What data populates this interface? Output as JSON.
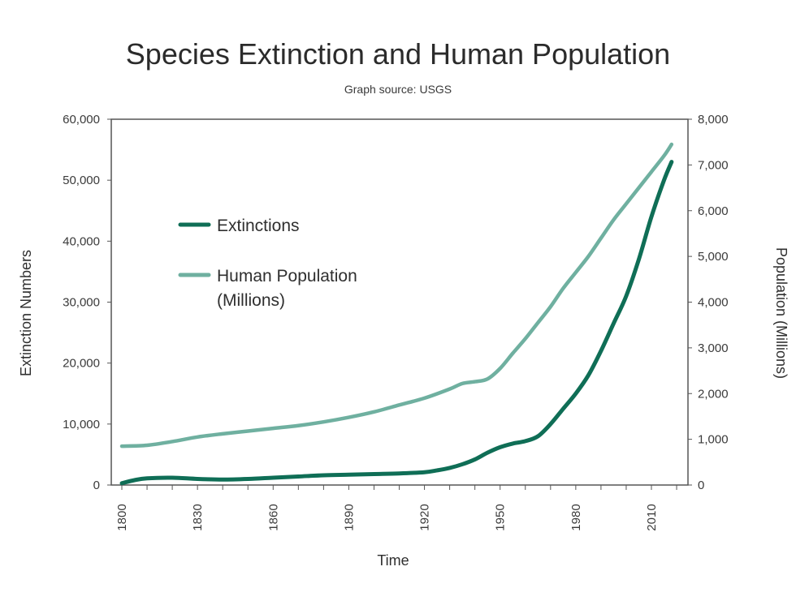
{
  "chart_data": {
    "type": "line",
    "title": "Species Extinction and Human Population",
    "subtitle": "Graph source: USGS",
    "xlabel": "Time",
    "ylabel_left": "Extinction Numbers",
    "ylabel_right": "Population (Millions)",
    "xlim": [
      1800,
      2020
    ],
    "ylim_left": [
      0,
      60000
    ],
    "ylim_right": [
      0,
      8000
    ],
    "x_ticks": [
      "1800",
      "1830",
      "1860",
      "1890",
      "1920",
      "1950",
      "1980",
      "2010"
    ],
    "y_left_ticks": [
      "0",
      "10,000",
      "20,000",
      "30,000",
      "40,000",
      "50,000",
      "60,000"
    ],
    "y_right_ticks": [
      "0",
      "1,000",
      "2,000",
      "3,000",
      "4,000",
      "5,000",
      "6,000",
      "7,000",
      "8,000"
    ],
    "grid": false,
    "legend_position": "upper-left",
    "series": [
      {
        "name": "Extinctions",
        "axis": "left",
        "color": "#0f6e56",
        "x": [
          1800,
          1805,
          1810,
          1820,
          1830,
          1840,
          1850,
          1860,
          1870,
          1880,
          1890,
          1900,
          1910,
          1920,
          1925,
          1930,
          1935,
          1940,
          1945,
          1950,
          1955,
          1960,
          1965,
          1970,
          1975,
          1980,
          1985,
          1990,
          1995,
          2000,
          2005,
          2010,
          2015,
          2018
        ],
        "y": [
          300,
          800,
          1100,
          1200,
          1000,
          900,
          1000,
          1200,
          1400,
          1600,
          1700,
          1800,
          1900,
          2100,
          2400,
          2800,
          3400,
          4200,
          5300,
          6200,
          6800,
          7200,
          8000,
          10000,
          12500,
          15000,
          18000,
          22000,
          26500,
          31000,
          37000,
          44000,
          50000,
          53000
        ]
      },
      {
        "name": "Human Population\n(Millions)",
        "name_lines": [
          "Human Population",
          "(Millions)"
        ],
        "axis": "right",
        "color": "#6fb0a0",
        "x": [
          1800,
          1810,
          1820,
          1830,
          1840,
          1850,
          1860,
          1870,
          1880,
          1890,
          1900,
          1910,
          1920,
          1930,
          1935,
          1940,
          1945,
          1950,
          1955,
          1960,
          1965,
          1970,
          1975,
          1980,
          1985,
          1990,
          1995,
          2000,
          2005,
          2010,
          2015,
          2018
        ],
        "y": [
          850,
          870,
          950,
          1050,
          1120,
          1180,
          1240,
          1300,
          1380,
          1480,
          1600,
          1750,
          1900,
          2100,
          2220,
          2260,
          2320,
          2550,
          2880,
          3200,
          3550,
          3900,
          4300,
          4650,
          5000,
          5400,
          5800,
          6150,
          6500,
          6850,
          7200,
          7450
        ]
      }
    ]
  }
}
